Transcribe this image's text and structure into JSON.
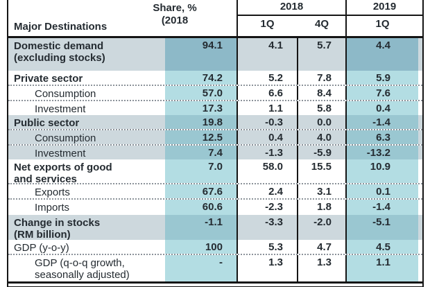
{
  "header": {
    "col_label": "Major Destinations",
    "share_header": "Share, %\n(2018",
    "year_2018": "2018",
    "year_2019": "2019",
    "q1_2018": "1Q",
    "q4_2018": "4Q",
    "q1_2019": "1Q"
  },
  "colors": {
    "highlight_dark_teal": "#8db9c8",
    "highlight_medium_teal": "#9ac7d1",
    "highlight_light_teal": "#b3dde3",
    "highlight_band_gray": "#cdd8dd",
    "border": "#141414",
    "text": "#242b31"
  },
  "rows": [
    {
      "label_lines": [
        "Domestic demand",
        "(excluding stocks)"
      ],
      "bold": true,
      "indent": false,
      "group": "hl-dark",
      "dotted_after": false,
      "values": [
        "94.1",
        "4.1",
        "5.7",
        "4.4"
      ]
    },
    {
      "label_lines": [
        "Private sector"
      ],
      "bold": true,
      "indent": false,
      "group": "plain",
      "dotted_after": true,
      "values": [
        "74.2",
        "5.2",
        "7.8",
        "5.9"
      ]
    },
    {
      "label_lines": [
        "Consumption"
      ],
      "bold": false,
      "indent": true,
      "group": "plain",
      "dotted_after": true,
      "values": [
        "57.0",
        "6.6",
        "8.4",
        "7.6"
      ]
    },
    {
      "label_lines": [
        "Investment"
      ],
      "bold": false,
      "indent": true,
      "group": "plain",
      "dotted_after": false,
      "values": [
        "17.3",
        "1.1",
        "5.8",
        "0.4"
      ]
    },
    {
      "label_lines": [
        "Public sector"
      ],
      "bold": true,
      "indent": false,
      "group": "hl-med",
      "dotted_after": true,
      "values": [
        "19.8",
        "-0.3",
        "0.0",
        "-1.4"
      ]
    },
    {
      "label_lines": [
        "Consumption"
      ],
      "bold": false,
      "indent": true,
      "group": "hl-med",
      "dotted_after": true,
      "values": [
        "12.5",
        "0.4",
        "4.0",
        "6.3"
      ]
    },
    {
      "label_lines": [
        "Investment"
      ],
      "bold": false,
      "indent": true,
      "group": "hl-med",
      "dotted_after": false,
      "values": [
        "7.4",
        "-1.3",
        "-5.9",
        "-13.2"
      ]
    },
    {
      "label_lines": [
        "Net exports of good",
        "and services"
      ],
      "bold": true,
      "indent": false,
      "group": "plain",
      "dotted_after": true,
      "values": [
        "7.0",
        "58.0",
        "15.5",
        "10.9"
      ]
    },
    {
      "label_lines": [
        "Exports"
      ],
      "bold": false,
      "indent": true,
      "group": "plain",
      "dotted_after": true,
      "values": [
        "67.6",
        "2.4",
        "3.1",
        "0.1"
      ]
    },
    {
      "label_lines": [
        "Imports"
      ],
      "bold": false,
      "indent": true,
      "group": "plain",
      "dotted_after": false,
      "values": [
        "60.6",
        "-2.3",
        "1.8",
        "-1.4"
      ]
    },
    {
      "label_lines": [
        "Change in stocks",
        "(RM billion)"
      ],
      "bold": true,
      "indent": false,
      "group": "hl-med",
      "dotted_after": false,
      "values": [
        "-1.1",
        "-3.3",
        "-2.0",
        "-5.1"
      ]
    },
    {
      "label_lines": [
        "GDP (y-o-y)"
      ],
      "bold": false,
      "indent": false,
      "group": "plain",
      "dotted_after": true,
      "values": [
        "100",
        "5.3",
        "4.7",
        "4.5"
      ]
    },
    {
      "label_lines": [
        "GDP (q-o-q growth,",
        "seasonally adjusted)"
      ],
      "bold": false,
      "indent": true,
      "group": "plain",
      "dotted_after": false,
      "values": [
        "-",
        "1.3",
        "1.3",
        "1.1"
      ]
    }
  ],
  "chart_data": {
    "type": "table",
    "title": "",
    "columns": [
      "Major Destinations",
      "Share, % (2018",
      "2018 1Q",
      "2018 4Q",
      "2019 1Q"
    ],
    "rows": [
      [
        "Domestic demand (excluding stocks)",
        94.1,
        4.1,
        5.7,
        4.4
      ],
      [
        "Private sector",
        74.2,
        5.2,
        7.8,
        5.9
      ],
      [
        "Consumption",
        57.0,
        6.6,
        8.4,
        7.6
      ],
      [
        "Investment",
        17.3,
        1.1,
        5.8,
        0.4
      ],
      [
        "Public sector",
        19.8,
        -0.3,
        0.0,
        -1.4
      ],
      [
        "Consumption",
        12.5,
        0.4,
        4.0,
        6.3
      ],
      [
        "Investment",
        7.4,
        -1.3,
        -5.9,
        -13.2
      ],
      [
        "Net exports of good and services",
        7.0,
        58.0,
        15.5,
        10.9
      ],
      [
        "Exports",
        67.6,
        2.4,
        3.1,
        0.1
      ],
      [
        "Imports",
        60.6,
        -2.3,
        1.8,
        -1.4
      ],
      [
        "Change in stocks (RM billion)",
        -1.1,
        -3.3,
        -2.0,
        -5.1
      ],
      [
        "GDP (y-o-y)",
        100,
        5.3,
        4.7,
        4.5
      ],
      [
        "GDP (q-o-q growth, seasonally adjusted)",
        null,
        1.3,
        1.3,
        1.1
      ]
    ]
  }
}
